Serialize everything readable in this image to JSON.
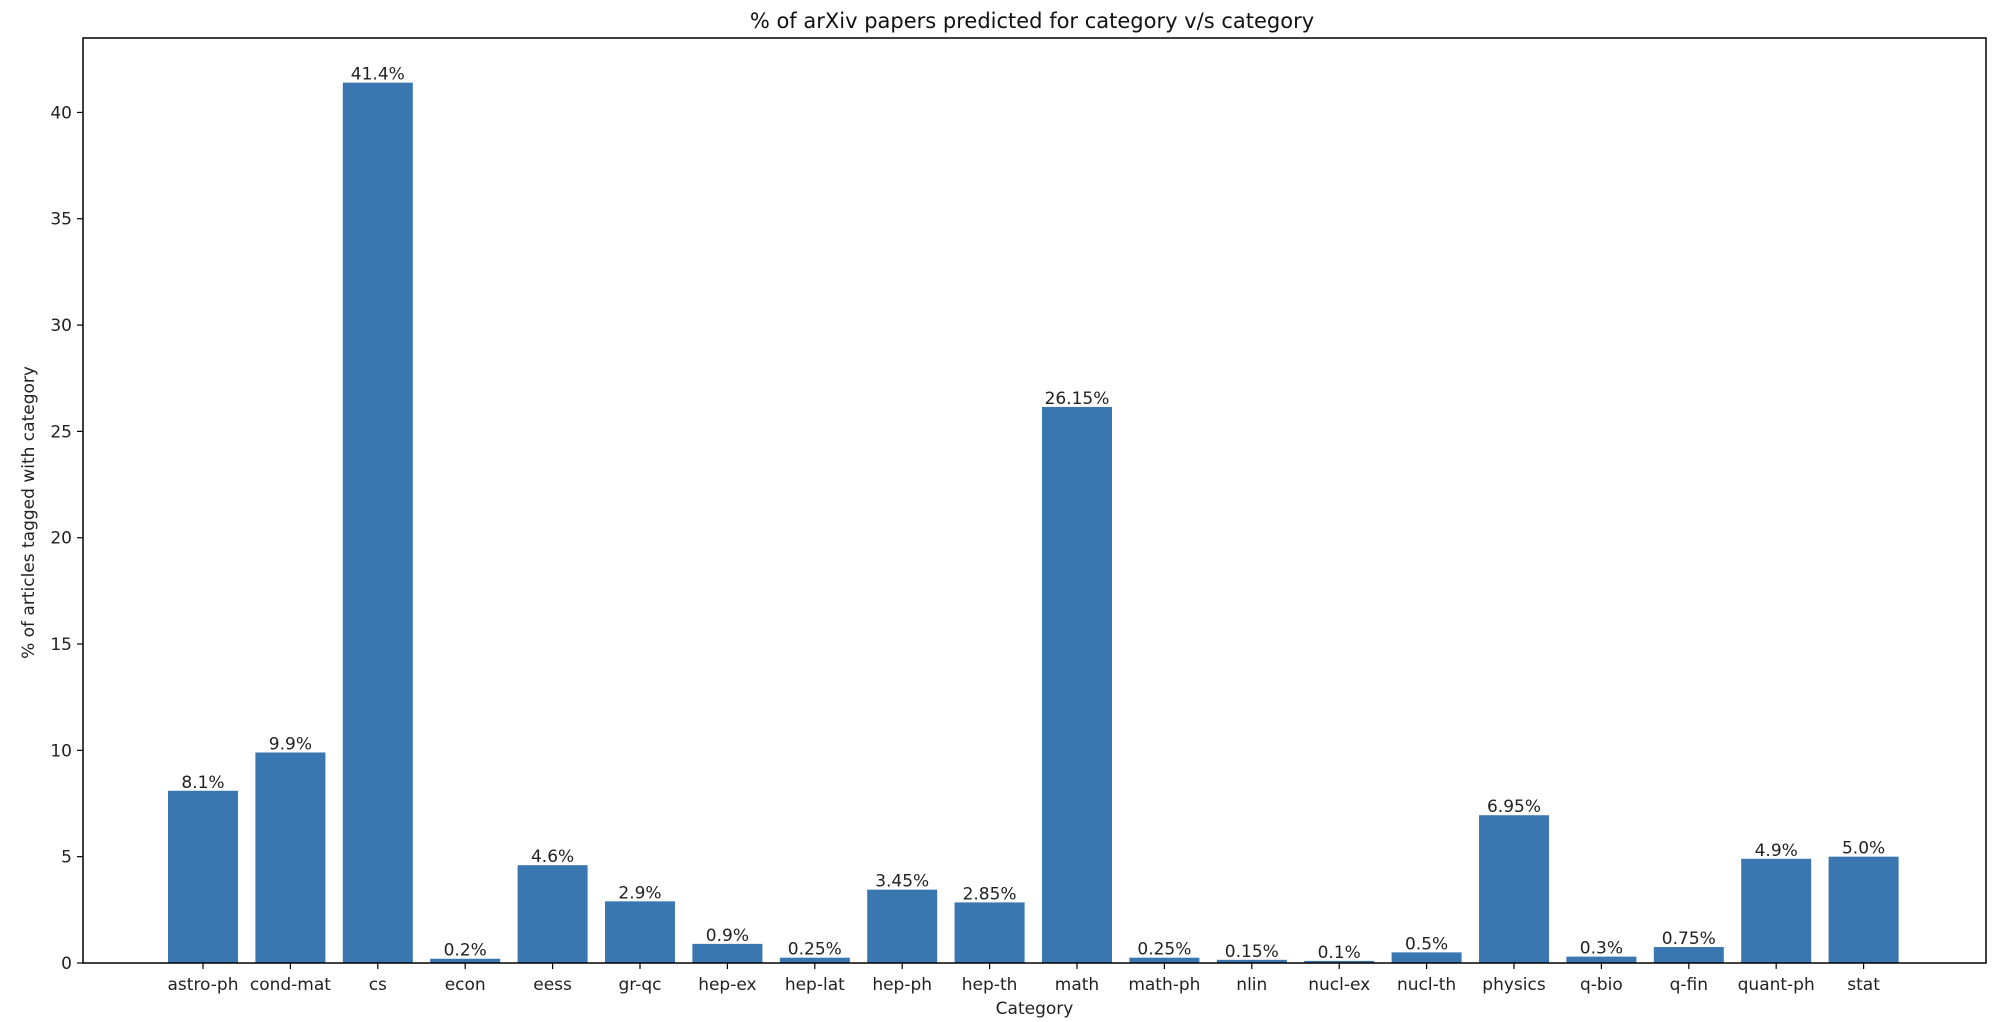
{
  "chart_data": {
    "type": "bar",
    "title": "% of arXiv papers predicted for category v/s category",
    "xlabel": "Category",
    "ylabel": "% of articles tagged with category",
    "categories": [
      "astro-ph",
      "cond-mat",
      "cs",
      "econ",
      "eess",
      "gr-qc",
      "hep-ex",
      "hep-lat",
      "hep-ph",
      "hep-th",
      "math",
      "math-ph",
      "nlin",
      "nucl-ex",
      "nucl-th",
      "physics",
      "q-bio",
      "q-fin",
      "quant-ph",
      "stat"
    ],
    "values": [
      8.1,
      9.9,
      41.4,
      0.2,
      4.6,
      2.9,
      0.9,
      0.25,
      3.45,
      2.85,
      26.15,
      0.25,
      0.15,
      0.1,
      0.5,
      6.95,
      0.3,
      0.75,
      4.9,
      5.0
    ],
    "data_labels": [
      "8.1%",
      "9.9%",
      "41.4%",
      "0.2%",
      "4.6%",
      "2.9%",
      "0.9%",
      "0.25%",
      "3.45%",
      "2.85%",
      "26.15%",
      "0.25%",
      "0.15%",
      "0.1%",
      "0.5%",
      "6.95%",
      "0.3%",
      "0.75%",
      "4.9%",
      "5.0%"
    ],
    "ylim": [
      0,
      43.5
    ],
    "yticks": [
      0,
      5,
      10,
      15,
      20,
      25,
      30,
      35,
      40
    ],
    "bar_color": "#3a76af",
    "grid": false
  }
}
